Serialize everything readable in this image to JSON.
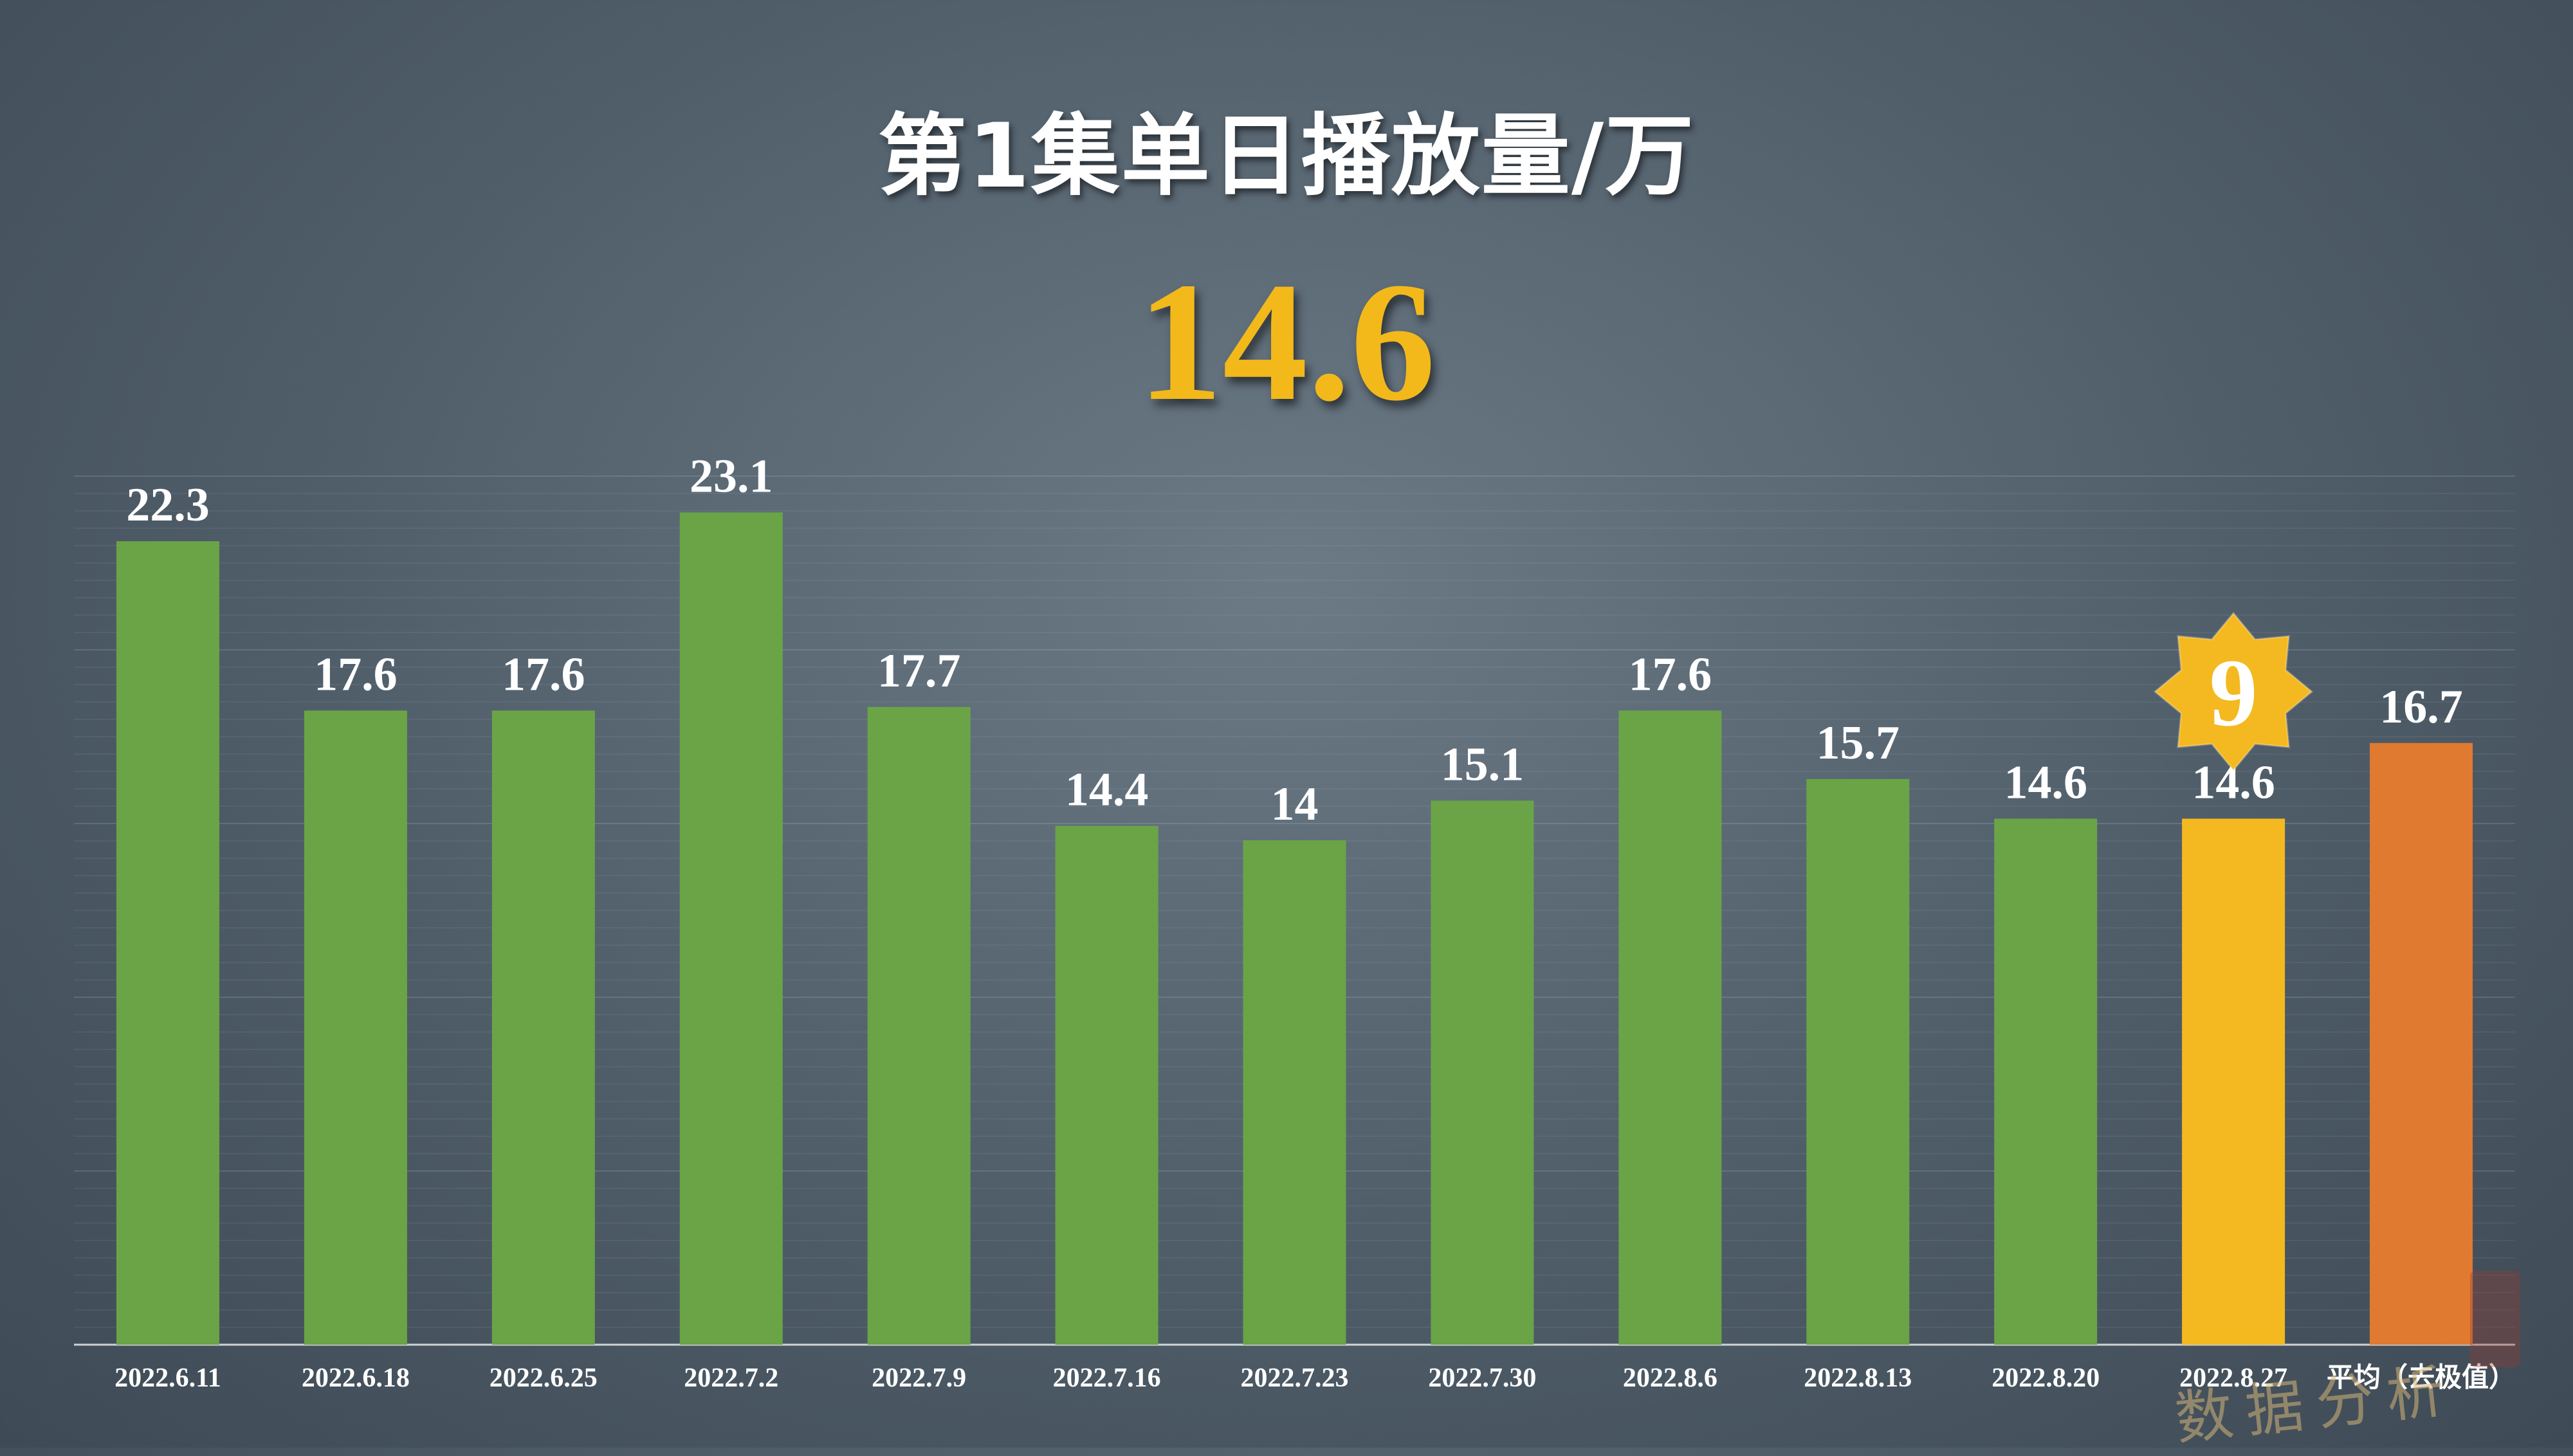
{
  "header": {
    "title": "第1集单日播放量/万",
    "headline_value": "14.6"
  },
  "badge": {
    "text": "9"
  },
  "colors": {
    "default_bar": "#6aa447",
    "highlight_bar": "#f4b920",
    "average_bar": "#e07a30",
    "badge_fill": "#f4b920",
    "label_text": "#ffffff"
  },
  "chart_data": {
    "type": "bar",
    "title": "第1集单日播放量/万",
    "categories": [
      "2022.6.11",
      "2022.6.18",
      "2022.6.25",
      "2022.7.2",
      "2022.7.9",
      "2022.7.16",
      "2022.7.23",
      "2022.7.30",
      "2022.8.6",
      "2022.8.13",
      "2022.8.20",
      "2022.8.27",
      "平均（去极值）"
    ],
    "values": [
      22.3,
      17.6,
      17.6,
      23.1,
      17.7,
      14.4,
      14,
      15.1,
      17.6,
      15.7,
      14.6,
      14.6,
      16.7
    ],
    "value_labels": [
      "22.3",
      "17.6",
      "17.6",
      "23.1",
      "17.7",
      "14.4",
      "14",
      "15.1",
      "17.6",
      "15.7",
      "14.6",
      "14.6",
      "16.7"
    ],
    "highlight_index": 11,
    "average_index": 12,
    "ylim": [
      0,
      25
    ],
    "grid": true,
    "legend": "none"
  }
}
